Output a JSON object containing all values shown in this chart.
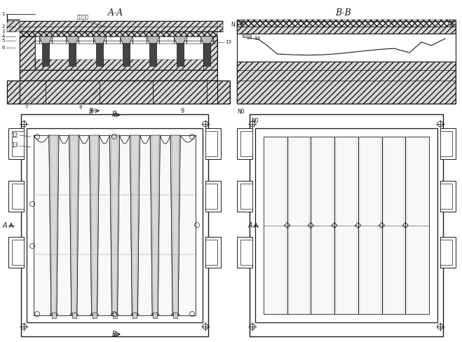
{
  "bg_color": "#ffffff",
  "line_color": "#1a1a1a",
  "fig_width": 6.59,
  "fig_height": 4.88,
  "dpi": 100,
  "label_ventilation": "通气管道",
  "title_aa": "A-A",
  "title_bb": "B-B"
}
